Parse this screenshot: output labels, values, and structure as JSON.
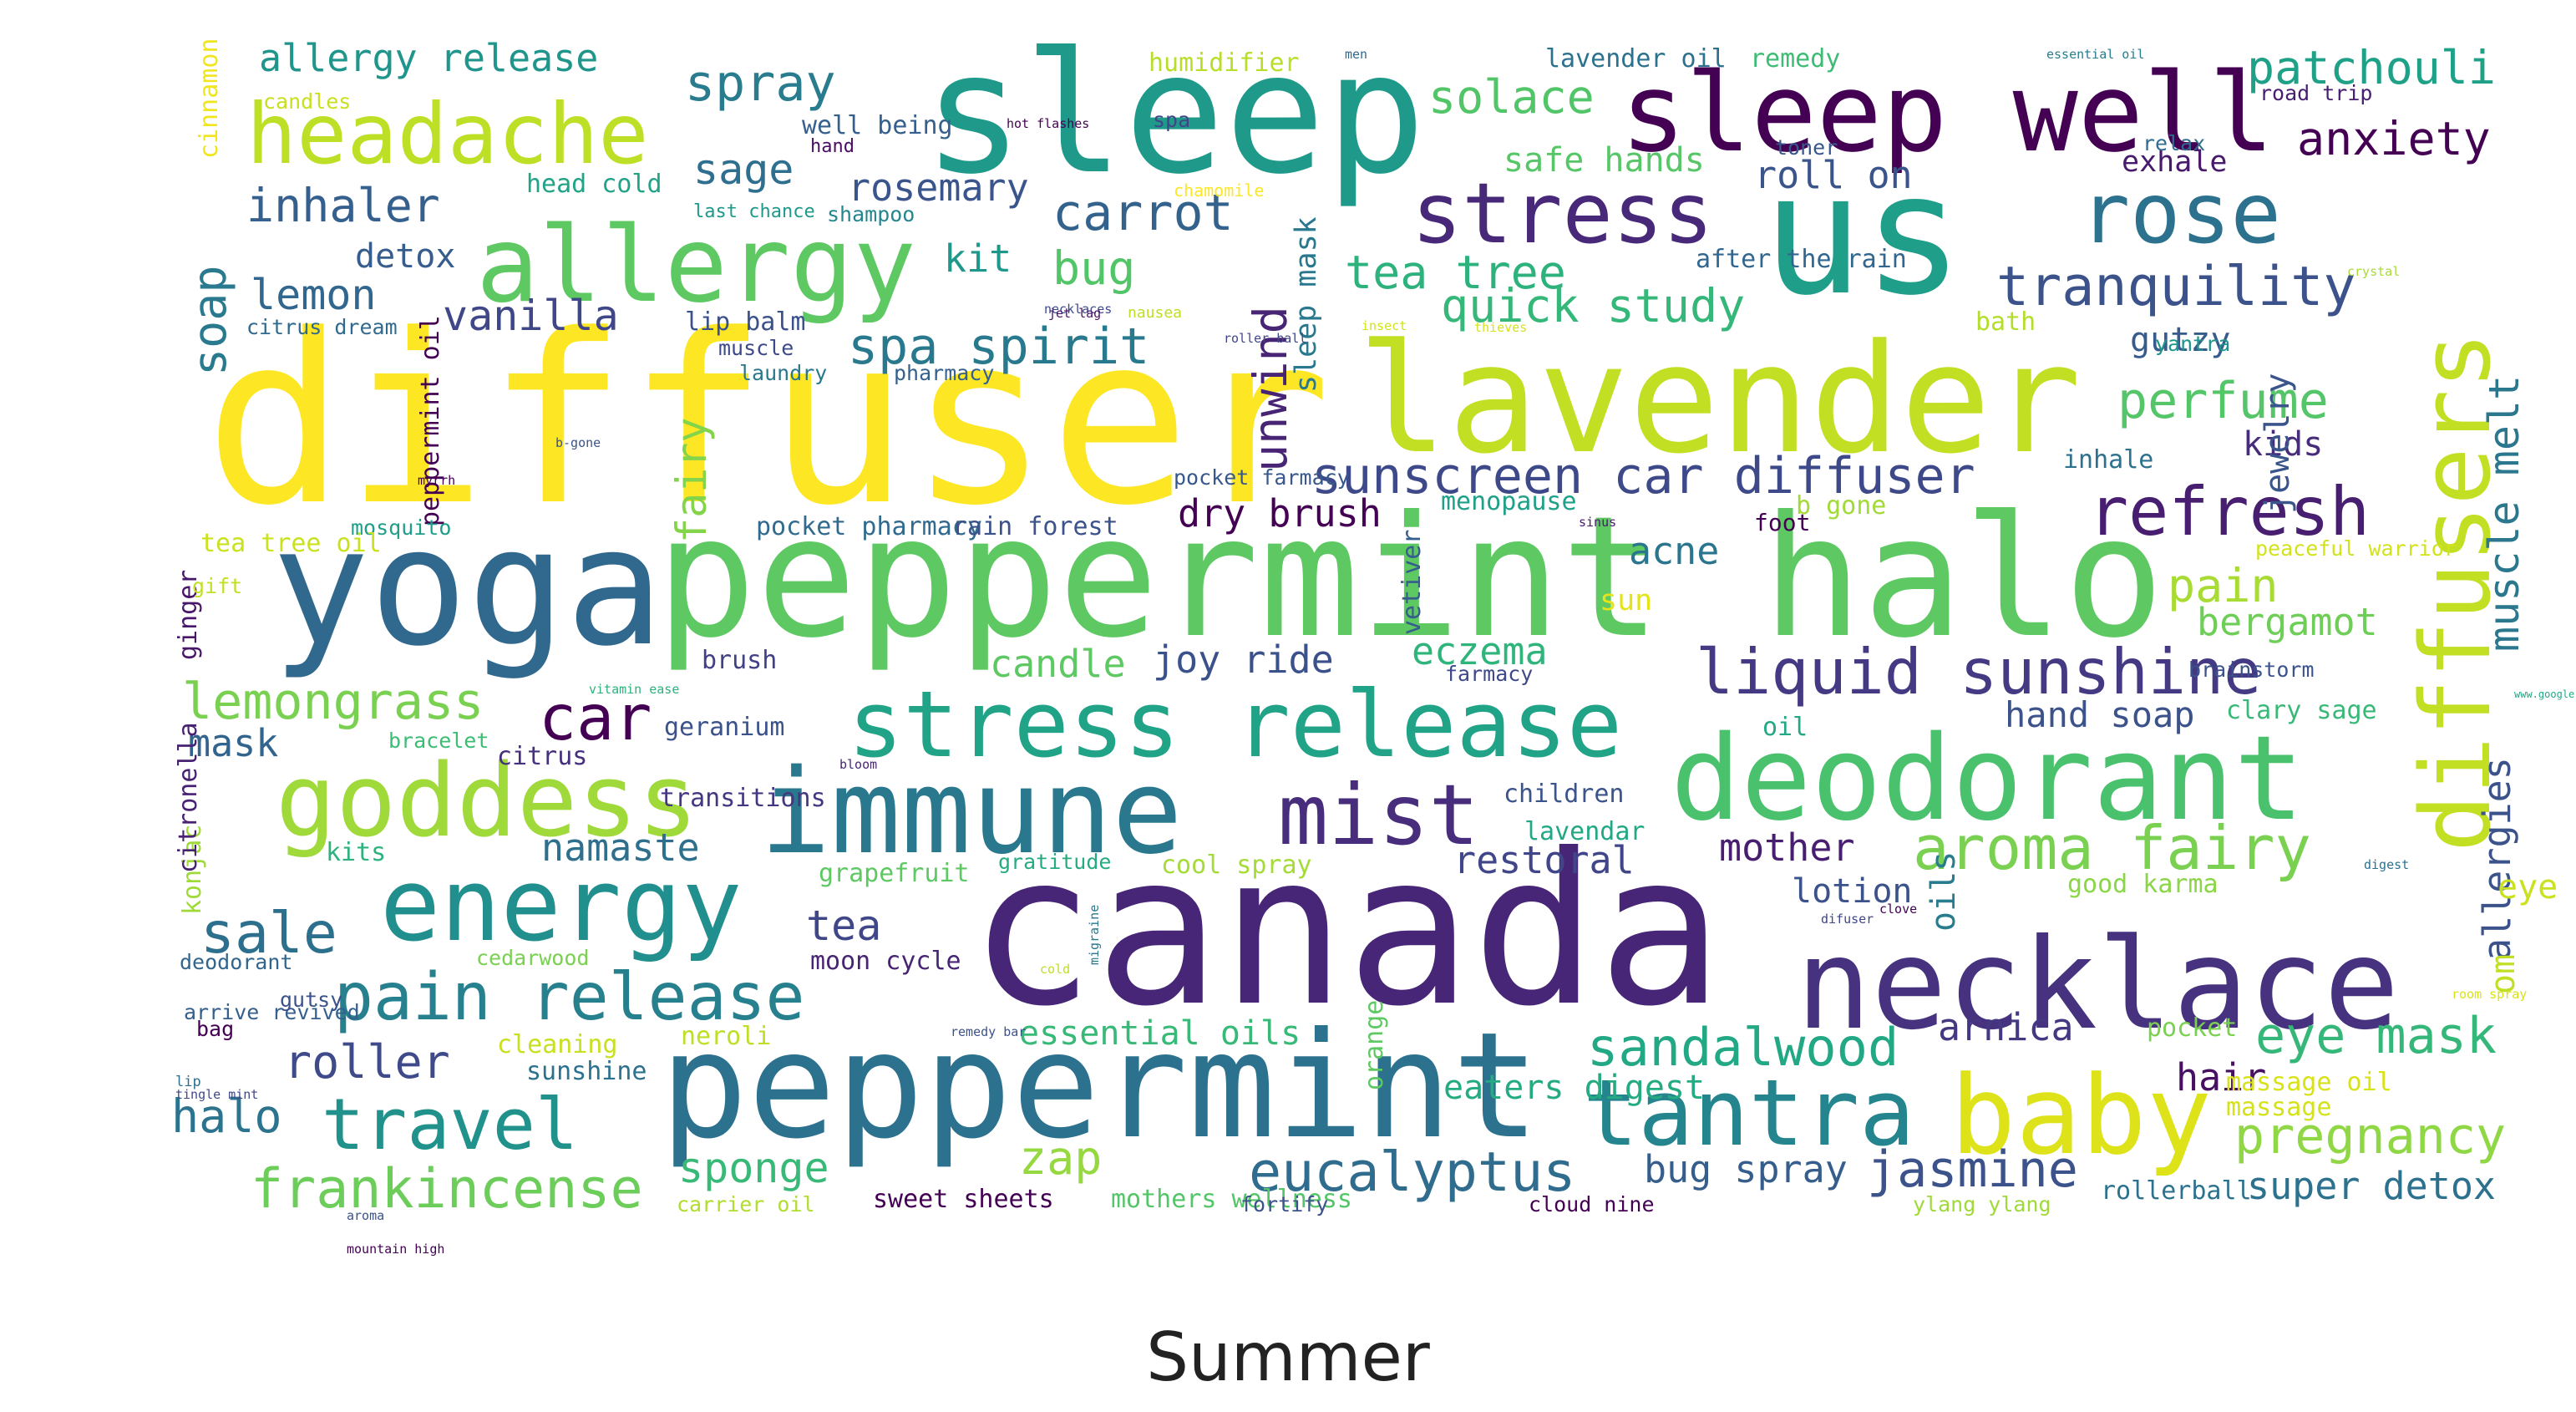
{
  "caption": "Summer",
  "words": [
    {
      "text": "canada",
      "color": "#482677"
    },
    {
      "text": "diffuser",
      "color": "#fde725"
    },
    {
      "text": "peppermint halo",
      "color": "#5ec962"
    },
    {
      "text": "peppermint",
      "color": "#2c728e"
    },
    {
      "text": "yoga",
      "color": "#31688e"
    },
    {
      "text": "sleep",
      "color": "#1f9a8a"
    },
    {
      "text": "lavender",
      "color": "#c2df23"
    },
    {
      "text": "us",
      "color": "#1f9e89"
    },
    {
      "text": "necklace",
      "color": "#46327e"
    },
    {
      "text": "deodorant",
      "color": "#4ac16d"
    },
    {
      "text": "immune",
      "color": "#2a788e"
    },
    {
      "text": "sleep well",
      "color": "#440154"
    },
    {
      "text": "stress release",
      "color": "#20a386"
    },
    {
      "text": "diffusers",
      "color": "#c2df23"
    },
    {
      "text": "allergy",
      "color": "#5ec962"
    },
    {
      "text": "goddess",
      "color": "#9fda3a"
    },
    {
      "text": "energy",
      "color": "#218f8d"
    },
    {
      "text": "mist",
      "color": "#472d7b"
    },
    {
      "text": "tantra",
      "color": "#25858e"
    },
    {
      "text": "baby",
      "color": "#dde318"
    },
    {
      "text": "stress",
      "color": "#482878"
    },
    {
      "text": "rose",
      "color": "#2c728e"
    },
    {
      "text": "headache",
      "color": "#bddf26"
    },
    {
      "text": "pain release",
      "color": "#27808e"
    },
    {
      "text": "travel",
      "color": "#21918c"
    },
    {
      "text": "refresh",
      "color": "#481f70"
    },
    {
      "text": "liquid sunshine",
      "color": "#443983"
    },
    {
      "text": "aroma fairy",
      "color": "#7ad151"
    },
    {
      "text": "eucalyptus",
      "color": "#2f6c8e"
    },
    {
      "text": "sunscreen car diffuser",
      "color": "#3e4989"
    },
    {
      "text": "frankincense",
      "color": "#6ccd5a"
    },
    {
      "text": "tranquility",
      "color": "#3b528b"
    },
    {
      "text": "spa spirit",
      "color": "#29798e"
    },
    {
      "text": "lemongrass",
      "color": "#7ad151"
    },
    {
      "text": "sale",
      "color": "#2d708e"
    },
    {
      "text": "sandalwood",
      "color": "#22a884"
    },
    {
      "text": "eye mask",
      "color": "#35b779"
    },
    {
      "text": "pregnancy",
      "color": "#8fd744"
    },
    {
      "text": "jasmine",
      "color": "#3b528b"
    },
    {
      "text": "perfume",
      "color": "#54c568"
    },
    {
      "text": "carrot",
      "color": "#33638d"
    },
    {
      "text": "car",
      "color": "#440154"
    },
    {
      "text": "spray",
      "color": "#297b8e"
    },
    {
      "text": "inhaler",
      "color": "#355f8d"
    },
    {
      "text": "solace",
      "color": "#52c569"
    },
    {
      "text": "patchouli",
      "color": "#1fa188"
    },
    {
      "text": "anxiety",
      "color": "#440154"
    },
    {
      "text": "muscle melt",
      "color": "#2a778e"
    },
    {
      "text": "allergies",
      "color": "#3b528b"
    },
    {
      "text": "tea tree",
      "color": "#2db27d"
    },
    {
      "text": "quick study",
      "color": "#35b779"
    },
    {
      "text": "unwind",
      "color": "#482475"
    },
    {
      "text": "vanilla",
      "color": "#3f4788"
    },
    {
      "text": "lemon",
      "color": "#31668e"
    },
    {
      "text": "soap",
      "color": "#297a8e"
    },
    {
      "text": "pain",
      "color": "#a8db34"
    },
    {
      "text": "bergamot",
      "color": "#6ece58"
    },
    {
      "text": "halo",
      "color": "#2c738e"
    },
    {
      "text": "roller",
      "color": "#3e4a89"
    },
    {
      "text": "sponge",
      "color": "#38b977"
    },
    {
      "text": "zap",
      "color": "#95d840"
    },
    {
      "text": "super detox",
      "color": "#2c718e"
    },
    {
      "text": "hand soap",
      "color": "#3b528b"
    },
    {
      "text": "bug spray",
      "color": "#355e8d"
    },
    {
      "text": "fairy",
      "color": "#84d44b"
    },
    {
      "text": "allergy release",
      "color": "#1f958b"
    },
    {
      "text": "sage",
      "color": "#2e6e8e"
    },
    {
      "text": "rosemary",
      "color": "#3a548c"
    },
    {
      "text": "bug",
      "color": "#52c569"
    },
    {
      "text": "kit",
      "color": "#1f978b"
    },
    {
      "text": "tea",
      "color": "#3f4788"
    },
    {
      "text": "namaste",
      "color": "#2e6f8e"
    },
    {
      "text": "mother",
      "color": "#481f70"
    },
    {
      "text": "restoral",
      "color": "#404688"
    },
    {
      "text": "candle",
      "color": "#5ec962"
    },
    {
      "text": "joy ride",
      "color": "#3b518b"
    },
    {
      "text": "eczema",
      "color": "#2fb47c"
    },
    {
      "text": "acne",
      "color": "#2a768e"
    },
    {
      "text": "lotion",
      "color": "#3b528b"
    },
    {
      "text": "dry brush",
      "color": "#440154"
    },
    {
      "text": "mask",
      "color": "#32648e"
    },
    {
      "text": "essential oils",
      "color": "#38b977"
    },
    {
      "text": "arnica",
      "color": "#453781"
    },
    {
      "text": "hair",
      "color": "#471063"
    },
    {
      "text": "eye",
      "color": "#cae11f"
    },
    {
      "text": "safe hands",
      "color": "#56c667"
    },
    {
      "text": "roll on",
      "color": "#3a548c"
    },
    {
      "text": "exhale",
      "color": "#481a6c"
    },
    {
      "text": "detox",
      "color": "#365d8d"
    },
    {
      "text": "kids",
      "color": "#472c7a"
    },
    {
      "text": "sleep mask",
      "color": "#2a788e"
    },
    {
      "text": "eaters digest",
      "color": "#25ab82"
    },
    {
      "text": "jewelry",
      "color": "#39558c"
    },
    {
      "text": "om",
      "color": "#c0df25"
    },
    {
      "text": "oils",
      "color": "#287c8e"
    },
    {
      "text": "sun",
      "color": "#e5e419"
    },
    {
      "text": "gutzy",
      "color": "#375b8d"
    },
    {
      "text": "vetiver",
      "color": "#355e8d"
    },
    {
      "text": "peppermint oil",
      "color": "#440154"
    },
    {
      "text": "ginger",
      "color": "#481769"
    },
    {
      "text": "konjac",
      "color": "#a0da39"
    },
    {
      "text": "citronella",
      "color": "#482173"
    },
    {
      "text": "orange",
      "color": "#5ec962"
    },
    {
      "text": "cinnamon",
      "color": "#f1e51d"
    },
    {
      "text": "humidifier",
      "color": "#b8de29"
    },
    {
      "text": "lavender oil",
      "color": "#2c718e"
    },
    {
      "text": "remedy",
      "color": "#3dbc74"
    },
    {
      "text": "well being",
      "color": "#35608d"
    },
    {
      "text": "candles",
      "color": "#c8e020"
    },
    {
      "text": "head cold",
      "color": "#20a386"
    },
    {
      "text": "shampoo",
      "color": "#24878e"
    },
    {
      "text": "toner",
      "color": "#38588c"
    },
    {
      "text": "relax",
      "color": "#2f6c8e"
    },
    {
      "text": "road trip",
      "color": "#481f70"
    },
    {
      "text": "after the rain",
      "color": "#31678e"
    },
    {
      "text": "bath",
      "color": "#b5de2b"
    },
    {
      "text": "yantra",
      "color": "#1f948c"
    },
    {
      "text": "lip balm",
      "color": "#3b518b"
    },
    {
      "text": "muscle",
      "color": "#3e4989"
    },
    {
      "text": "laundry",
      "color": "#2a788e"
    },
    {
      "text": "pharmacy",
      "color": "#34618d"
    },
    {
      "text": "citrus dream",
      "color": "#306a8e"
    },
    {
      "text": "last chance",
      "color": "#1f998a"
    },
    {
      "text": "inhale",
      "color": "#2c728e"
    },
    {
      "text": "b gone",
      "color": "#a2da37"
    },
    {
      "text": "foot",
      "color": "#440154"
    },
    {
      "text": "menopause",
      "color": "#1fa088"
    },
    {
      "text": "pocket pharmacy",
      "color": "#306a8e"
    },
    {
      "text": "rain forest",
      "color": "#3b528b"
    },
    {
      "text": "pocket farmacy",
      "color": "#38588c"
    },
    {
      "text": "mosquito",
      "color": "#1f9e89"
    },
    {
      "text": "tea tree oil",
      "color": "#cae11f"
    },
    {
      "text": "gift",
      "color": "#c2df23"
    },
    {
      "text": "brush",
      "color": "#424086"
    },
    {
      "text": "geranium",
      "color": "#3b528b"
    },
    {
      "text": "bracelet",
      "color": "#3dbc74"
    },
    {
      "text": "citrus",
      "color": "#46307e"
    },
    {
      "text": "transitions",
      "color": "#453781"
    },
    {
      "text": "kits",
      "color": "#2db27d"
    },
    {
      "text": "grapefruit",
      "color": "#5ec962"
    },
    {
      "text": "gratitude",
      "color": "#25ab82"
    },
    {
      "text": "cool spray",
      "color": "#a5db36"
    },
    {
      "text": "children",
      "color": "#3a548c"
    },
    {
      "text": "lavendar",
      "color": "#22a884"
    },
    {
      "text": "oil",
      "color": "#22a884"
    },
    {
      "text": "clary sage",
      "color": "#38b977"
    },
    {
      "text": "brainstorm",
      "color": "#3b528b"
    },
    {
      "text": "farmacy",
      "color": "#3e4989"
    },
    {
      "text": "peaceful warrior",
      "color": "#d2e21b"
    },
    {
      "text": "good karma",
      "color": "#8bd646"
    },
    {
      "text": "cedarwood",
      "color": "#7ad151"
    },
    {
      "text": "moon cycle",
      "color": "#482475"
    },
    {
      "text": "deodorant",
      "color": "#32658e"
    },
    {
      "text": "arrive revived",
      "color": "#355f8d"
    },
    {
      "text": "gutsy",
      "color": "#3b528b"
    },
    {
      "text": "bag",
      "color": "#440154"
    },
    {
      "text": "cleaning",
      "color": "#c8e020"
    },
    {
      "text": "sunshine",
      "color": "#2c728e"
    },
    {
      "text": "neroli",
      "color": "#bddf26"
    },
    {
      "text": "sweet sheets",
      "color": "#440154"
    },
    {
      "text": "massage oil",
      "color": "#d8e219"
    },
    {
      "text": "massage",
      "color": "#d5e21a"
    },
    {
      "text": "mothers wellness",
      "color": "#54c568"
    },
    {
      "text": "fortify",
      "color": "#3b528b"
    },
    {
      "text": "cloud nine",
      "color": "#440154"
    },
    {
      "text": "carrier oil",
      "color": "#b0dd2f"
    },
    {
      "text": "ylang ylang",
      "color": "#9fda3a"
    },
    {
      "text": "rollerball",
      "color": "#2c728e"
    },
    {
      "text": "pocket",
      "color": "#7ad151"
    },
    {
      "text": "lip",
      "color": "#2d708e"
    },
    {
      "text": "tingle mint",
      "color": "#3f4788"
    },
    {
      "text": "aroma",
      "color": "#3b528b"
    },
    {
      "text": "men",
      "color": "#31688e"
    },
    {
      "text": "essential oil",
      "color": "#287d8e"
    },
    {
      "text": "hot flashes",
      "color": "#440154"
    },
    {
      "text": "hand",
      "color": "#470e61"
    },
    {
      "text": "spa",
      "color": "#404688"
    },
    {
      "text": "chamomile",
      "color": "#fde725"
    },
    {
      "text": "necklaces",
      "color": "#3e4989"
    },
    {
      "text": "jet lag",
      "color": "#471365"
    },
    {
      "text": "nausea",
      "color": "#bddf26"
    },
    {
      "text": "roller ball",
      "color": "#404688"
    },
    {
      "text": "insect",
      "color": "#d2e21b"
    },
    {
      "text": "thieves",
      "color": "#d8e219"
    },
    {
      "text": "crystal",
      "color": "#a8db34"
    },
    {
      "text": "b-gone",
      "color": "#3b528b"
    },
    {
      "text": "myrrh",
      "color": "#440154"
    },
    {
      "text": "mountain high",
      "color": "#440154"
    },
    {
      "text": "vitamin ease",
      "color": "#2db27d"
    },
    {
      "text": "sinus",
      "color": "#481a6c"
    },
    {
      "text": "www.google.com/intl/en/policies/terms/",
      "color": "#22a884"
    },
    {
      "text": "bloom",
      "color": "#482475"
    },
    {
      "text": "cold",
      "color": "#c0df25"
    },
    {
      "text": "migraine",
      "color": "#2a788e"
    },
    {
      "text": "remedy bar",
      "color": "#3b528b"
    },
    {
      "text": "difuser",
      "color": "#3f4788"
    },
    {
      "text": "clove",
      "color": "#440154"
    },
    {
      "text": "digest",
      "color": "#2c728e"
    },
    {
      "text": "room spray",
      "color": "#d8e219"
    }
  ]
}
